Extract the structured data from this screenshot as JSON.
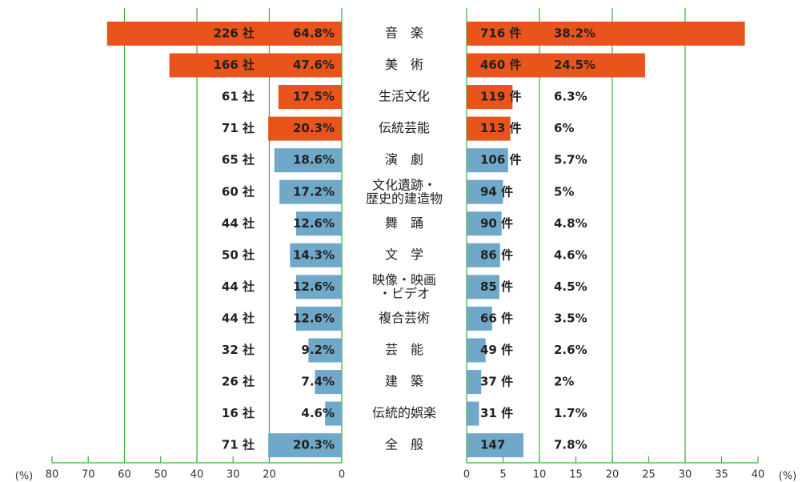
{
  "chart_data": {
    "type": "butterfly",
    "categories": [
      "音　楽",
      "美　術",
      "生活文化",
      "伝統芸能",
      "演　劇",
      "文化遺跡・\n歴史的建造物",
      "舞　踊",
      "文　学",
      "映像・映画\n・ビデオ",
      "複合芸術",
      "芸　能",
      "建　築",
      "伝統的娯楽",
      "全　般"
    ],
    "bar_colors": [
      "#e8541b",
      "#e8541b",
      "#e8541b",
      "#e8541b",
      "#6fa8c8",
      "#6fa8c8",
      "#6fa8c8",
      "#6fa8c8",
      "#6fa8c8",
      "#6fa8c8",
      "#6fa8c8",
      "#6fa8c8",
      "#6fa8c8",
      "#6fa8c8"
    ],
    "left": {
      "values": [
        64.8,
        47.6,
        17.5,
        20.3,
        18.6,
        17.2,
        12.6,
        14.3,
        12.6,
        12.6,
        9.2,
        7.4,
        4.6,
        20.3
      ],
      "value_labels": [
        "64.8%",
        "47.6%",
        "17.5%",
        "20.3%",
        "18.6%",
        "17.2%",
        "12.6%",
        "14.3%",
        "12.6%",
        "12.6%",
        "9.2%",
        "7.4%",
        "4.6%",
        "20.3%"
      ],
      "count_labels": [
        "226 社",
        "166 社",
        "61 社",
        "71 社",
        "65 社",
        "60 社",
        "44 社",
        "50 社",
        "44 社",
        "44 社",
        "32 社",
        "26 社",
        "16 社",
        "71 社"
      ],
      "xlim": [
        0,
        80
      ],
      "xticks": [
        80,
        70,
        60,
        50,
        40,
        30,
        20,
        0
      ],
      "grid": [
        20,
        40,
        60
      ],
      "unit": "(%)"
    },
    "right": {
      "values": [
        38.2,
        24.5,
        6.3,
        6,
        5.7,
        5,
        4.8,
        4.6,
        4.5,
        3.5,
        2.6,
        2,
        1.7,
        7.8
      ],
      "value_labels": [
        "38.2%",
        "24.5%",
        "6.3%",
        "6%",
        "5.7%",
        "5%",
        "4.8%",
        "4.6%",
        "4.5%",
        "3.5%",
        "2.6%",
        "2%",
        "1.7%",
        "7.8%"
      ],
      "count_labels": [
        "716 件",
        "460 件",
        "119 件",
        "113 件",
        "106 件",
        "94 件",
        "90 件",
        "86 件",
        "85 件",
        "66 件",
        "49 件",
        "37 件",
        "31 件",
        "147"
      ],
      "xlim": [
        0,
        40
      ],
      "xticks": [
        0,
        5,
        10,
        15,
        20,
        25,
        30,
        35,
        40
      ],
      "grid": [
        10,
        20,
        30
      ],
      "unit": "(%)"
    }
  }
}
